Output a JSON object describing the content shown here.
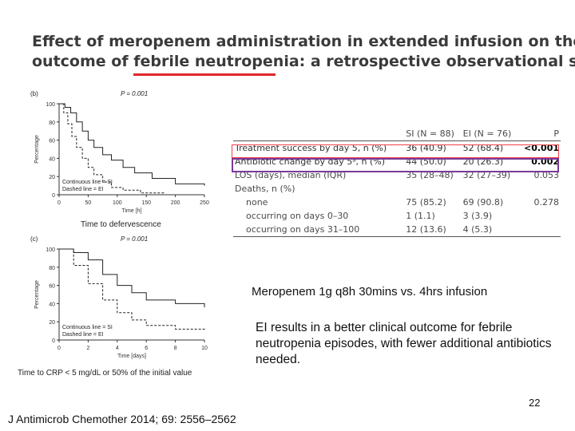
{
  "slide": {
    "title_line1": "Effect of meropenem administration in extended infusion on the clinical",
    "title_line2": "outcome of febrile neutropenia: a retrospective observational study",
    "subtitle": "Meropenem 1g q8h 30mins vs. 4hrs infusion",
    "summary": "EI results in a better clinical outcome for febrile neutropenia episodes, with fewer additional antibiotics needed.",
    "page_number": "22",
    "citation": "J Antimicrob Chemother 2014; 69: 2556–2562",
    "underline_color": "#e0262a"
  },
  "chart_data": [
    {
      "type": "line",
      "panel_label": "(b)",
      "p_value": "P = 0.001",
      "caption": "Time to defervescence",
      "xlabel": "Time [h]",
      "ylabel": "Percentage",
      "xlim": [
        0,
        250
      ],
      "ylim": [
        0,
        100
      ],
      "xticks": [
        0,
        50,
        100,
        150,
        200,
        250
      ],
      "yticks": [
        0,
        20,
        40,
        60,
        80,
        100
      ],
      "legend": [
        "Continuous line = SI",
        "Dashed line = EI"
      ],
      "legend_position": "bottom-left",
      "series": [
        {
          "name": "SI",
          "style": "solid",
          "x": [
            0,
            10,
            20,
            30,
            40,
            50,
            60,
            75,
            90,
            110,
            130,
            160,
            200,
            250
          ],
          "y": [
            100,
            96,
            90,
            80,
            70,
            60,
            52,
            44,
            38,
            30,
            24,
            18,
            12,
            10
          ]
        },
        {
          "name": "EI",
          "style": "dashed",
          "x": [
            0,
            8,
            15,
            22,
            30,
            40,
            50,
            60,
            75,
            90,
            110,
            140,
            180
          ],
          "y": [
            100,
            90,
            78,
            64,
            52,
            40,
            30,
            22,
            14,
            8,
            5,
            2,
            0
          ]
        }
      ]
    },
    {
      "type": "line",
      "panel_label": "(c)",
      "p_value": "P = 0.001",
      "caption": "Time to CRP < 5 mg/dL or 50% of the initial value",
      "xlabel": "Time [days]",
      "ylabel": "Percentage",
      "xlim": [
        0,
        10
      ],
      "ylim": [
        0,
        100
      ],
      "xticks": [
        0,
        2,
        4,
        6,
        8,
        10
      ],
      "yticks": [
        0,
        20,
        40,
        60,
        80,
        100
      ],
      "legend": [
        "Continuous line = SI",
        "Dashed line = EI"
      ],
      "legend_position": "bottom-left",
      "series": [
        {
          "name": "SI",
          "style": "solid",
          "x": [
            0,
            1,
            2,
            3,
            4,
            5,
            6,
            8,
            10
          ],
          "y": [
            100,
            96,
            88,
            72,
            60,
            52,
            44,
            40,
            36
          ]
        },
        {
          "name": "EI",
          "style": "dashed",
          "x": [
            0,
            1,
            2,
            3,
            4,
            5,
            6,
            8,
            10
          ],
          "y": [
            100,
            82,
            62,
            44,
            30,
            22,
            16,
            12,
            10
          ]
        }
      ]
    },
    {
      "type": "table",
      "columns": [
        "",
        "SI (N = 88)",
        "EI (N = 76)",
        "P"
      ],
      "rows": [
        {
          "label": "Treatment success by day 5, n (%)",
          "si": "36 (40.9)",
          "ei": "52 (68.4)",
          "p": "<0.001",
          "p_bold": true,
          "indent": false
        },
        {
          "label": "Antibiotic change by day 5ᵃ, n (%)",
          "si": "44 (50.0)",
          "ei": "20 (26.3)",
          "p": "0.002",
          "p_bold": true,
          "indent": false
        },
        {
          "label": "LOS (days), median (IQR)",
          "si": "35 (28–48)",
          "ei": "32 (27–39)",
          "p": "0.053",
          "p_bold": false,
          "indent": false
        },
        {
          "label": "Deaths, n (%)",
          "si": "",
          "ei": "",
          "p": "",
          "p_bold": false,
          "indent": false
        },
        {
          "label": "none",
          "si": "75 (85.2)",
          "ei": "69 (90.8)",
          "p": "0.278",
          "p_bold": false,
          "indent": true
        },
        {
          "label": "occurring on days 0–30",
          "si": "1 (1.1)",
          "ei": "3 (3.9)",
          "p": "",
          "p_bold": false,
          "indent": true
        },
        {
          "label": "occurring on days 31–100",
          "si": "12 (13.6)",
          "ei": "4 (5.3)",
          "p": "",
          "p_bold": false,
          "indent": true
        }
      ]
    }
  ]
}
